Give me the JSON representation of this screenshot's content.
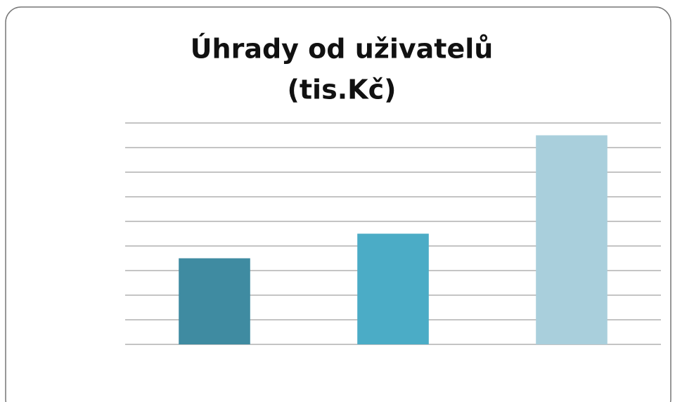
{
  "chart_data": {
    "type": "bar",
    "title": "Úhrady od uživatelů",
    "subtitle": "(tis.Kč)",
    "categories": [
      null,
      null,
      null
    ],
    "values": [
      3.5,
      4.5,
      8.5
    ],
    "colors": [
      "#3f8ba1",
      "#4bacc6",
      "#a9cfdc"
    ],
    "ylim": [
      0,
      9
    ],
    "yticks": [
      0,
      1,
      2,
      3,
      4,
      5,
      6,
      7,
      8,
      9
    ],
    "grid": true
  }
}
